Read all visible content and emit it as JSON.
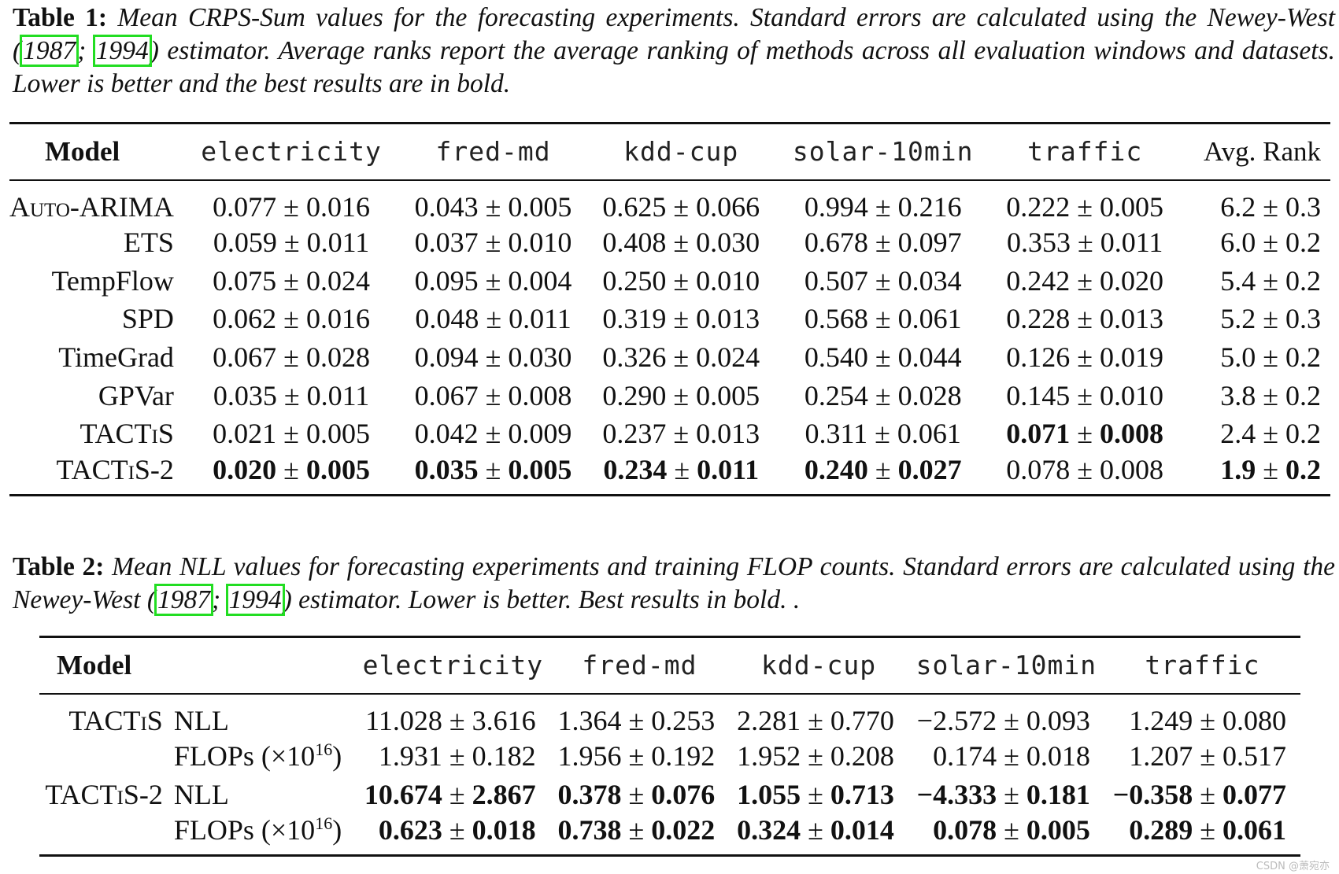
{
  "table1": {
    "caption": {
      "label": "Table 1:",
      "text_before": "Mean CRPS-Sum values for the forecasting experiments. Standard errors are calculated using the Newey-West (",
      "cite1": "1987",
      "sep": "; ",
      "cite2": "1994",
      "text_after": ") estimator. Average ranks report the average ranking of methods across all evaluation windows and datasets. Lower is better and the best results are in bold."
    },
    "header": {
      "model": "Model",
      "columns": [
        "electricity",
        "fred-md",
        "kdd-cup",
        "solar-10min",
        "traffic"
      ],
      "avg_rank": "Avg. Rank"
    },
    "rows": [
      {
        "name": "Auto-ARIMA",
        "values": [
          [
            "0.077",
            "0.016"
          ],
          [
            "0.043",
            "0.005"
          ],
          [
            "0.625",
            "0.066"
          ],
          [
            "0.994",
            "0.216"
          ],
          [
            "0.222",
            "0.005"
          ]
        ],
        "avg": [
          "6.2",
          "0.3"
        ]
      },
      {
        "name": "ETS",
        "values": [
          [
            "0.059",
            "0.011"
          ],
          [
            "0.037",
            "0.010"
          ],
          [
            "0.408",
            "0.030"
          ],
          [
            "0.678",
            "0.097"
          ],
          [
            "0.353",
            "0.011"
          ]
        ],
        "avg": [
          "6.0",
          "0.2"
        ]
      },
      {
        "name": "TempFlow",
        "values": [
          [
            "0.075",
            "0.024"
          ],
          [
            "0.095",
            "0.004"
          ],
          [
            "0.250",
            "0.010"
          ],
          [
            "0.507",
            "0.034"
          ],
          [
            "0.242",
            "0.020"
          ]
        ],
        "avg": [
          "5.4",
          "0.2"
        ]
      },
      {
        "name": "SPD",
        "values": [
          [
            "0.062",
            "0.016"
          ],
          [
            "0.048",
            "0.011"
          ],
          [
            "0.319",
            "0.013"
          ],
          [
            "0.568",
            "0.061"
          ],
          [
            "0.228",
            "0.013"
          ]
        ],
        "avg": [
          "5.2",
          "0.3"
        ]
      },
      {
        "name": "TimeGrad",
        "values": [
          [
            "0.067",
            "0.028"
          ],
          [
            "0.094",
            "0.030"
          ],
          [
            "0.326",
            "0.024"
          ],
          [
            "0.540",
            "0.044"
          ],
          [
            "0.126",
            "0.019"
          ]
        ],
        "avg": [
          "5.0",
          "0.2"
        ]
      },
      {
        "name": "GPVar",
        "values": [
          [
            "0.035",
            "0.011"
          ],
          [
            "0.067",
            "0.008"
          ],
          [
            "0.290",
            "0.005"
          ],
          [
            "0.254",
            "0.028"
          ],
          [
            "0.145",
            "0.010"
          ]
        ],
        "avg": [
          "3.8",
          "0.2"
        ]
      },
      {
        "name": "TACTiS",
        "values": [
          [
            "0.021",
            "0.005"
          ],
          [
            "0.042",
            "0.009"
          ],
          [
            "0.237",
            "0.013"
          ],
          [
            "0.311",
            "0.061"
          ],
          [
            "0.071",
            "0.008"
          ]
        ],
        "avg": [
          "2.4",
          "0.2"
        ]
      },
      {
        "name": "TACTiS-2",
        "values": [
          [
            "0.020",
            "0.005"
          ],
          [
            "0.035",
            "0.005"
          ],
          [
            "0.234",
            "0.011"
          ],
          [
            "0.240",
            "0.027"
          ],
          [
            "0.078",
            "0.008"
          ]
        ],
        "avg": [
          "1.9",
          "0.2"
        ]
      }
    ]
  },
  "table2": {
    "caption": {
      "label": "Table 2:",
      "text_before": "Mean NLL values for forecasting experiments and training FLOP counts. Standard errors are calculated using the Newey-West (",
      "cite1": "1987",
      "sep": "; ",
      "cite2": "1994",
      "text_after": ") estimator. Lower is better. Best results in bold. ."
    },
    "header": {
      "model": "Model",
      "columns": [
        "electricity",
        "fred-md",
        "kdd-cup",
        "solar-10min",
        "traffic"
      ]
    },
    "flops_label": "FLOPs (×10",
    "flops_exp": "16",
    "flops_close": ")",
    "rows": [
      {
        "model": "TACTiS",
        "metric": "NLL",
        "values": [
          [
            "11.028",
            "3.616"
          ],
          [
            "1.364",
            "0.253"
          ],
          [
            "2.281",
            "0.770"
          ],
          [
            "−2.572",
            "0.093"
          ],
          [
            "1.249",
            "0.080"
          ]
        ]
      },
      {
        "model": "",
        "metric": "FLOPs",
        "values": [
          [
            "1.931",
            "0.182"
          ],
          [
            "1.956",
            "0.192"
          ],
          [
            "1.952",
            "0.208"
          ],
          [
            "0.174",
            "0.018"
          ],
          [
            "1.207",
            "0.517"
          ]
        ]
      },
      {
        "model": "TACTiS-2",
        "metric": "NLL",
        "values": [
          [
            "10.674",
            "2.867"
          ],
          [
            "0.378",
            "0.076"
          ],
          [
            "1.055",
            "0.713"
          ],
          [
            "−4.333",
            "0.181"
          ],
          [
            "−0.358",
            "0.077"
          ]
        ]
      },
      {
        "model": "",
        "metric": "FLOPs",
        "values": [
          [
            "0.623",
            "0.018"
          ],
          [
            "0.738",
            "0.022"
          ],
          [
            "0.324",
            "0.014"
          ],
          [
            "0.078",
            "0.005"
          ],
          [
            "0.289",
            "0.061"
          ]
        ]
      }
    ]
  },
  "pm": "±",
  "watermark": "CSDN @萧宛亦"
}
